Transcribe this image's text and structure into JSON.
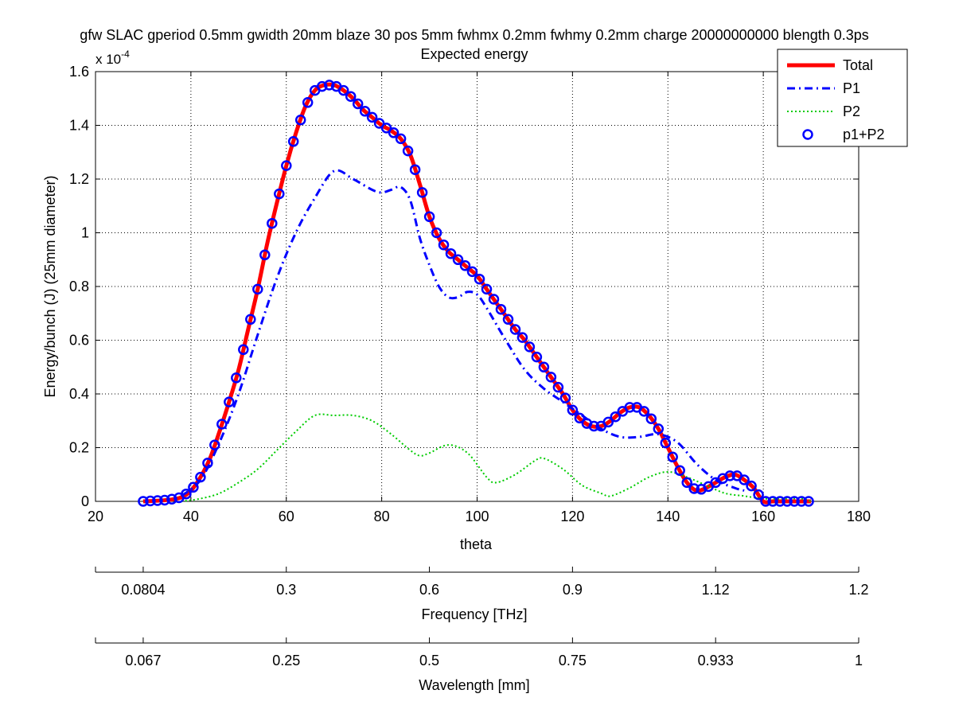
{
  "chart_data": {
    "type": "line",
    "title": "gfw SLAC gperiod 0.5mm gwidth 20mm blaze 30 pos 5mm fwhmx 0.2mm fwhmy 0.2mm charge 20000000000 blength 0.3ps",
    "subtitle": "Expected energy",
    "xlabel": "theta",
    "ylabel": "Energy/bunch (J) (25mm diameter)",
    "y_exponent_label": "x 10",
    "y_exponent_power": "-4",
    "xlim": [
      20,
      180
    ],
    "ylim": [
      0,
      1.6
    ],
    "grid": true,
    "legend_position": "top-right",
    "x_ticks": [
      "20",
      "40",
      "60",
      "80",
      "100",
      "120",
      "140",
      "160",
      "180"
    ],
    "y_ticks": [
      "0",
      "0.2",
      "0.4",
      "0.6",
      "0.8",
      "1",
      "1.2",
      "1.4",
      "1.6"
    ],
    "secondary_axes": [
      {
        "label": "Frequency [THz]",
        "tick_labels": [
          "0.0804",
          "0.3",
          "0.6",
          "0.9",
          "1.12",
          "1.2"
        ],
        "tick_positions_theta": [
          30,
          60,
          90,
          120,
          150,
          180
        ],
        "extra_ticks_theta": [
          20
        ]
      },
      {
        "label": "Wavelength [mm]",
        "tick_labels": [
          "0.067",
          "0.25",
          "0.5",
          "0.75",
          "0.933",
          "1"
        ],
        "tick_positions_theta": [
          30,
          60,
          90,
          120,
          150,
          180
        ],
        "extra_ticks_theta": [
          20
        ]
      }
    ],
    "series": [
      {
        "name": "Total",
        "color": "#ff0000",
        "style": "solid",
        "x": [
          30,
          35,
          38,
          40,
          42,
          44,
          46,
          48,
          50,
          52,
          54,
          56,
          58,
          60,
          62,
          64,
          66,
          68,
          70,
          72,
          74,
          76,
          78,
          80,
          82,
          84,
          86,
          88,
          90,
          92,
          94,
          96,
          98,
          100,
          102,
          104,
          106,
          108,
          110,
          112,
          114,
          116,
          118,
          120,
          122,
          124,
          126,
          128,
          130,
          132,
          134,
          136,
          138,
          140,
          142,
          144,
          146,
          148,
          150,
          152,
          154,
          156,
          158,
          160,
          162,
          164,
          166,
          168,
          170
        ],
        "y": [
          0.0,
          0.005,
          0.015,
          0.04,
          0.09,
          0.16,
          0.26,
          0.37,
          0.49,
          0.64,
          0.79,
          0.96,
          1.11,
          1.25,
          1.37,
          1.47,
          1.53,
          1.55,
          1.55,
          1.53,
          1.5,
          1.46,
          1.43,
          1.4,
          1.38,
          1.35,
          1.29,
          1.18,
          1.06,
          0.98,
          0.93,
          0.9,
          0.87,
          0.84,
          0.79,
          0.74,
          0.69,
          0.64,
          0.6,
          0.55,
          0.5,
          0.45,
          0.4,
          0.34,
          0.3,
          0.28,
          0.28,
          0.3,
          0.33,
          0.35,
          0.35,
          0.32,
          0.27,
          0.2,
          0.13,
          0.07,
          0.04,
          0.05,
          0.07,
          0.09,
          0.1,
          0.08,
          0.05,
          0.0,
          0.0,
          0.0,
          0.0,
          0.0,
          0.0
        ]
      },
      {
        "name": "P1",
        "color": "#0000ff",
        "style": "dashdot",
        "x": [
          38,
          42,
          46,
          50,
          54,
          58,
          62,
          66,
          70,
          74,
          78,
          80,
          82,
          84,
          86,
          88,
          90,
          92,
          94,
          96,
          98,
          100,
          102,
          106,
          110,
          114,
          118,
          122,
          126,
          130,
          134,
          138,
          142,
          146,
          150,
          154,
          156
        ],
        "y": [
          0.02,
          0.08,
          0.22,
          0.4,
          0.62,
          0.83,
          1.0,
          1.13,
          1.23,
          1.2,
          1.16,
          1.15,
          1.16,
          1.17,
          1.12,
          0.98,
          0.88,
          0.8,
          0.76,
          0.76,
          0.78,
          0.77,
          0.72,
          0.6,
          0.49,
          0.42,
          0.37,
          0.32,
          0.27,
          0.24,
          0.24,
          0.25,
          0.22,
          0.14,
          0.08,
          0.05,
          0.04
        ]
      },
      {
        "name": "P2",
        "color": "#00cc00",
        "style": "dotted",
        "x": [
          38,
          42,
          46,
          50,
          54,
          58,
          62,
          66,
          70,
          74,
          78,
          82,
          86,
          88,
          90,
          94,
          98,
          102,
          104,
          108,
          112,
          114,
          118,
          122,
          126,
          128,
          132,
          136,
          140,
          144,
          148,
          152,
          156,
          160,
          164,
          168,
          170
        ],
        "y": [
          0.0,
          0.01,
          0.03,
          0.07,
          0.12,
          0.19,
          0.26,
          0.32,
          0.32,
          0.32,
          0.3,
          0.25,
          0.19,
          0.17,
          0.18,
          0.21,
          0.18,
          0.09,
          0.07,
          0.1,
          0.15,
          0.16,
          0.12,
          0.06,
          0.03,
          0.02,
          0.05,
          0.09,
          0.11,
          0.09,
          0.06,
          0.03,
          0.02,
          0.01,
          0.01,
          0.01,
          0.0
        ]
      },
      {
        "name": "p1+P2",
        "color": "#0000ff",
        "style": "markers",
        "x": [
          30,
          35,
          38,
          40,
          42,
          44,
          46,
          48,
          50,
          52,
          54,
          56,
          58,
          60,
          62,
          64,
          66,
          68,
          70,
          72,
          74,
          76,
          78,
          80,
          82,
          84,
          86,
          88,
          90,
          92,
          94,
          96,
          98,
          100,
          102,
          104,
          106,
          108,
          110,
          112,
          114,
          116,
          118,
          120,
          122,
          124,
          126,
          128,
          130,
          132,
          134,
          136,
          138,
          140,
          142,
          144,
          146,
          148,
          150,
          152,
          154,
          156,
          158,
          160,
          162,
          164,
          166,
          168,
          170
        ],
        "y": [
          0.0,
          0.005,
          0.015,
          0.04,
          0.09,
          0.16,
          0.26,
          0.37,
          0.49,
          0.64,
          0.79,
          0.96,
          1.11,
          1.25,
          1.37,
          1.47,
          1.53,
          1.55,
          1.55,
          1.53,
          1.5,
          1.46,
          1.43,
          1.4,
          1.38,
          1.35,
          1.29,
          1.18,
          1.06,
          0.98,
          0.93,
          0.9,
          0.87,
          0.84,
          0.79,
          0.74,
          0.69,
          0.64,
          0.6,
          0.55,
          0.5,
          0.45,
          0.4,
          0.34,
          0.3,
          0.28,
          0.28,
          0.3,
          0.33,
          0.35,
          0.35,
          0.32,
          0.27,
          0.2,
          0.13,
          0.07,
          0.04,
          0.05,
          0.07,
          0.09,
          0.1,
          0.08,
          0.05,
          0.0,
          0.0,
          0.0,
          0.0,
          0.0,
          0.0
        ]
      }
    ]
  }
}
